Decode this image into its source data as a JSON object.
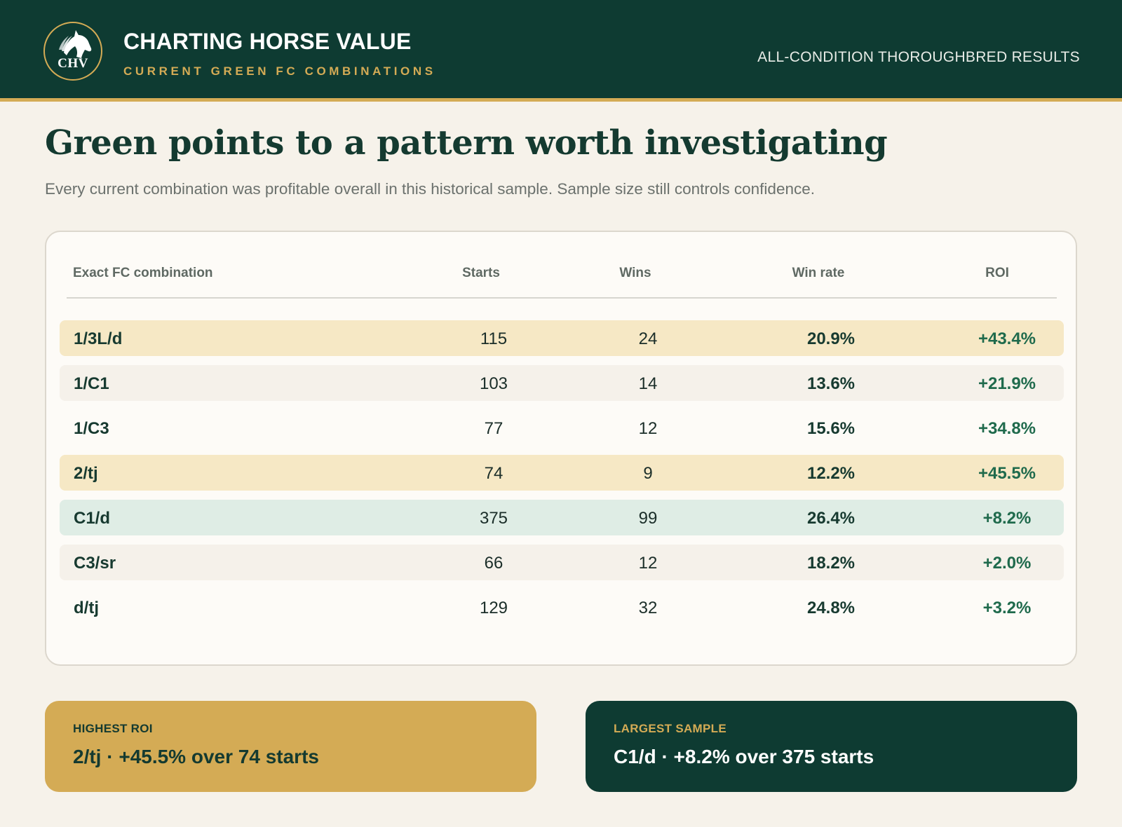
{
  "header": {
    "logo_text": "CHV",
    "brand_title": "CHARTING HORSE VALUE",
    "brand_subtitle": "CURRENT GREEN FC COMBINATIONS",
    "right_label": "ALL-CONDITION THOROUGHBRED RESULTS"
  },
  "headline": "Green points to a pattern worth investigating",
  "subhead": "Every current combination was profitable overall in this historical sample. Sample size still controls confidence.",
  "table": {
    "columns": [
      "Exact FC combination",
      "Starts",
      "Wins",
      "Win rate",
      "ROI"
    ],
    "rows": [
      {
        "combo": "1/3L/d",
        "starts": "115",
        "wins": "24",
        "win_rate": "20.9%",
        "roi": "+43.4%",
        "bg": "#f6e8c5"
      },
      {
        "combo": "1/C1",
        "starts": "103",
        "wins": "14",
        "win_rate": "13.6%",
        "roi": "+21.9%",
        "bg": "#f5f1ea"
      },
      {
        "combo": "1/C3",
        "starts": "77",
        "wins": "12",
        "win_rate": "15.6%",
        "roi": "+34.8%",
        "bg": "transparent"
      },
      {
        "combo": "2/tj",
        "starts": "74",
        "wins": "9",
        "win_rate": "12.2%",
        "roi": "+45.5%",
        "bg": "#f6e8c5"
      },
      {
        "combo": "C1/d",
        "starts": "375",
        "wins": "99",
        "win_rate": "26.4%",
        "roi": "+8.2%",
        "bg": "#dfede5"
      },
      {
        "combo": "C3/sr",
        "starts": "66",
        "wins": "12",
        "win_rate": "18.2%",
        "roi": "+2.0%",
        "bg": "#f5f1ea"
      },
      {
        "combo": "d/tj",
        "starts": "129",
        "wins": "32",
        "win_rate": "24.8%",
        "roi": "+3.2%",
        "bg": "transparent"
      }
    ]
  },
  "summaries": {
    "highest_roi": {
      "label": "HIGHEST ROI",
      "value": "2/tj · +45.5% over 74 starts"
    },
    "largest_sample": {
      "label": "LARGEST SAMPLE",
      "value": "C1/d · +8.2% over 375 starts"
    }
  },
  "colors": {
    "header_bg": "#0e3b32",
    "accent_gold": "#d4ab55",
    "page_bg": "#f6f2ea",
    "roi_green": "#1f6a4c",
    "highlight_gold_row": "#f6e8c5",
    "highlight_green_row": "#dfede5"
  },
  "icons": {
    "logo": "horse-head-icon"
  }
}
